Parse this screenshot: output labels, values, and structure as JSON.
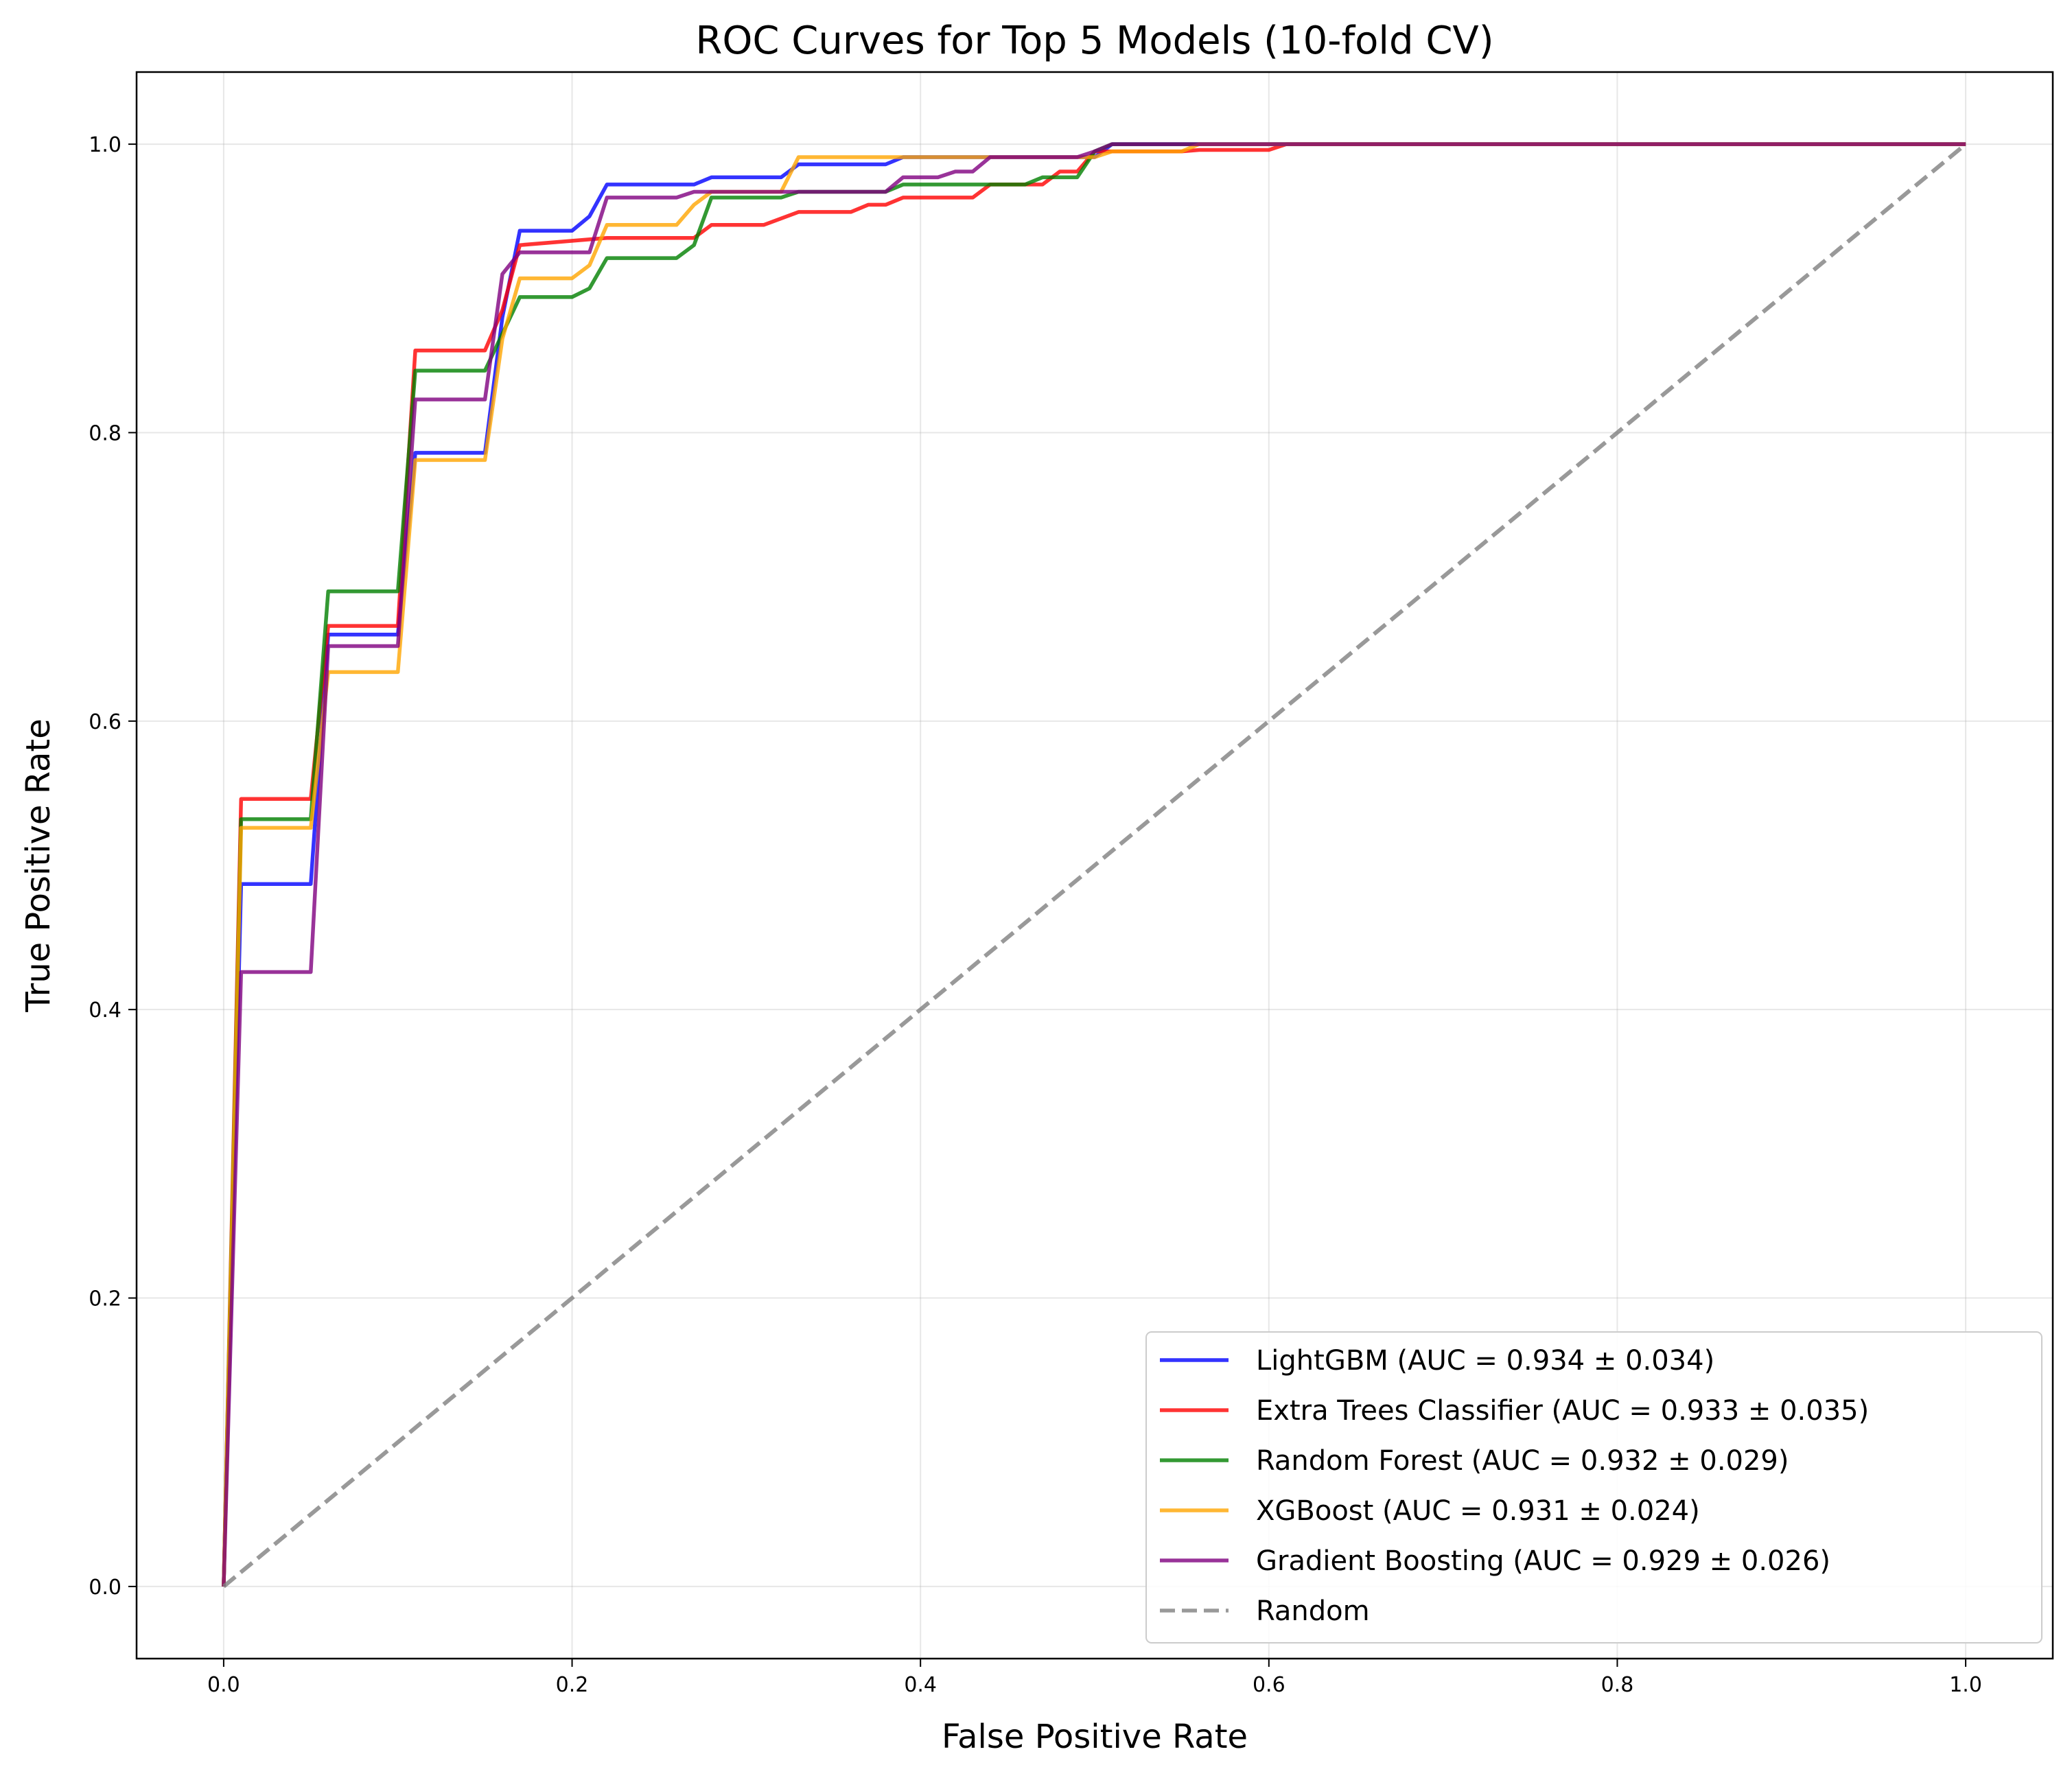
{
  "chart_data": {
    "type": "line",
    "title": "ROC Curves for Top 5 Models (10-fold CV)",
    "xlabel": "False Positive Rate",
    "ylabel": "True Positive Rate",
    "xlim": [
      -0.05,
      1.05
    ],
    "ylim": [
      -0.05,
      1.05
    ],
    "xticks": [
      "0.0",
      "0.2",
      "0.4",
      "0.6",
      "0.8",
      "1.0"
    ],
    "yticks": [
      "0.0",
      "0.2",
      "0.4",
      "0.6",
      "0.8",
      "1.0"
    ],
    "grid": true,
    "legend_position": "lower-right",
    "series": [
      {
        "name": "LightGBM (AUC = 0.934 ± 0.034)",
        "color": "#0000ff",
        "x": [
          0,
          0.01,
          0.05,
          0.06,
          0.1,
          0.11,
          0.15,
          0.16,
          0.17,
          0.2,
          0.21,
          0.22,
          0.27,
          0.28,
          0.32,
          0.33,
          0.38,
          0.39,
          0.5,
          0.51,
          1.0
        ],
        "y": [
          0,
          0.487,
          0.487,
          0.66,
          0.66,
          0.786,
          0.786,
          0.88,
          0.94,
          0.94,
          0.95,
          0.972,
          0.972,
          0.977,
          0.977,
          0.986,
          0.986,
          0.991,
          0.991,
          1.0,
          1.0
        ]
      },
      {
        "name": "Extra Trees Classifier (AUC = 0.933 ± 0.035)",
        "color": "#ff0000",
        "x": [
          0,
          0.01,
          0.05,
          0.06,
          0.1,
          0.11,
          0.15,
          0.16,
          0.17,
          0.22,
          0.27,
          0.28,
          0.31,
          0.33,
          0.36,
          0.37,
          0.38,
          0.39,
          0.43,
          0.44,
          0.47,
          0.48,
          0.49,
          0.5,
          0.55,
          0.56,
          0.6,
          0.61,
          1.0
        ],
        "y": [
          0,
          0.546,
          0.546,
          0.666,
          0.666,
          0.857,
          0.857,
          0.885,
          0.93,
          0.935,
          0.935,
          0.944,
          0.944,
          0.953,
          0.953,
          0.958,
          0.958,
          0.963,
          0.963,
          0.972,
          0.972,
          0.981,
          0.981,
          0.995,
          0.995,
          0.996,
          0.996,
          1.0,
          1.0
        ]
      },
      {
        "name": "Random Forest (AUC = 0.932 ± 0.029)",
        "color": "#008000",
        "x": [
          0,
          0.01,
          0.05,
          0.06,
          0.1,
          0.11,
          0.15,
          0.17,
          0.2,
          0.21,
          0.22,
          0.26,
          0.27,
          0.28,
          0.32,
          0.33,
          0.38,
          0.39,
          0.46,
          0.47,
          0.49,
          0.5,
          0.51,
          1.0
        ],
        "y": [
          0,
          0.532,
          0.532,
          0.69,
          0.69,
          0.843,
          0.843,
          0.894,
          0.894,
          0.9,
          0.921,
          0.921,
          0.93,
          0.963,
          0.963,
          0.967,
          0.967,
          0.972,
          0.972,
          0.977,
          0.977,
          0.995,
          1.0,
          1.0
        ]
      },
      {
        "name": "XGBoost (AUC = 0.931 ± 0.024)",
        "color": "#ffa500",
        "x": [
          0,
          0.01,
          0.05,
          0.06,
          0.1,
          0.11,
          0.15,
          0.16,
          0.17,
          0.2,
          0.21,
          0.22,
          0.26,
          0.27,
          0.28,
          0.32,
          0.33,
          0.5,
          0.51,
          0.55,
          0.56,
          1.0
        ],
        "y": [
          0,
          0.526,
          0.526,
          0.634,
          0.634,
          0.781,
          0.781,
          0.865,
          0.907,
          0.907,
          0.916,
          0.944,
          0.944,
          0.958,
          0.967,
          0.967,
          0.991,
          0.991,
          0.995,
          0.995,
          1.0,
          1.0
        ]
      },
      {
        "name": "Gradient Boosting (AUC = 0.929 ± 0.026)",
        "color": "#800080",
        "x": [
          0,
          0.01,
          0.05,
          0.06,
          0.1,
          0.11,
          0.15,
          0.16,
          0.17,
          0.21,
          0.22,
          0.26,
          0.27,
          0.38,
          0.39,
          0.41,
          0.42,
          0.43,
          0.44,
          0.49,
          0.5,
          0.51,
          1.0
        ],
        "y": [
          0,
          0.426,
          0.426,
          0.652,
          0.652,
          0.823,
          0.823,
          0.91,
          0.925,
          0.925,
          0.963,
          0.963,
          0.967,
          0.967,
          0.977,
          0.977,
          0.981,
          0.981,
          0.991,
          0.991,
          0.995,
          1.0,
          1.0
        ]
      },
      {
        "name": "Random",
        "color": "#808080",
        "dashed": true,
        "x": [
          0,
          1
        ],
        "y": [
          0,
          1
        ]
      }
    ]
  }
}
